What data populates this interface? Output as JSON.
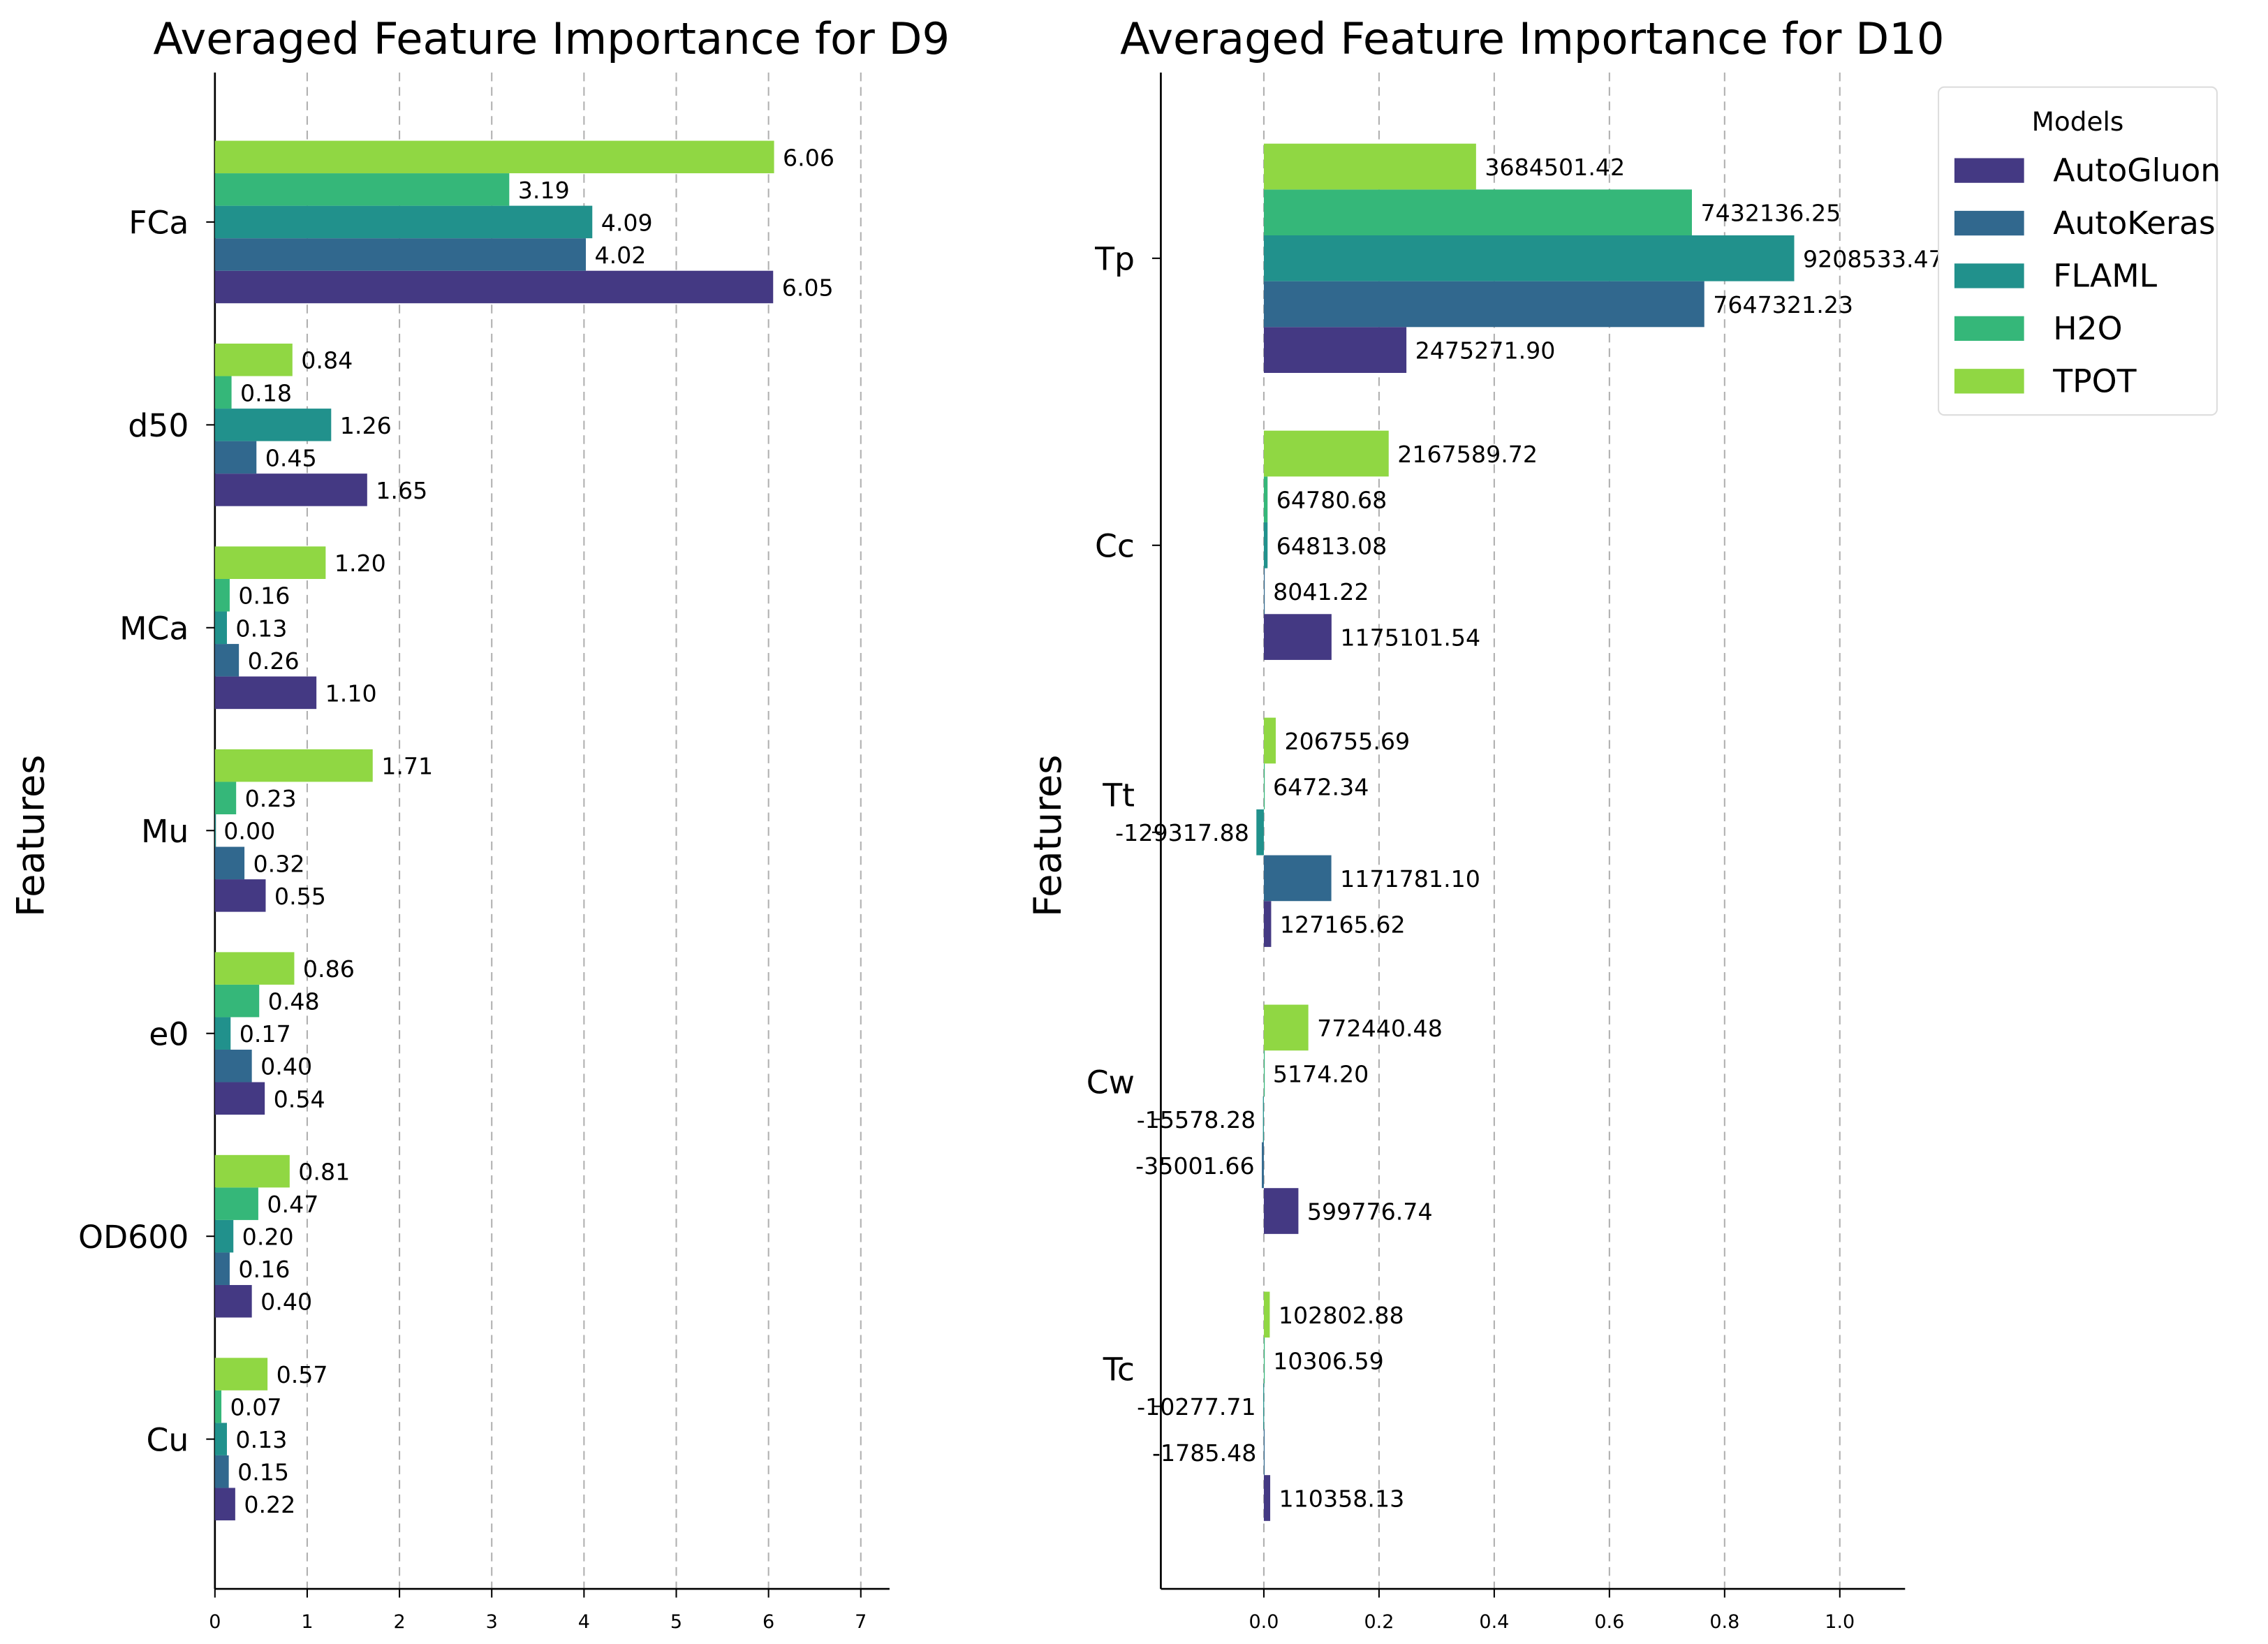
{
  "series_colors": {
    "AutoGluon": "#443983",
    "AutoKeras": "#31688e",
    "FLAML": "#21918c",
    "H2O": "#35b779",
    "TPOT": "#90d743"
  },
  "legend": {
    "title": "Models",
    "entries": [
      "AutoGluon",
      "AutoKeras",
      "FLAML",
      "H2O",
      "TPOT"
    ]
  },
  "chart_data": [
    {
      "type": "bar",
      "orientation": "horizontal",
      "title": "Averaged Feature Importance for D9",
      "xlabel": "",
      "ylabel": "Features",
      "xlim": [
        0,
        7.3
      ],
      "xticks": [
        "0",
        "1",
        "2",
        "3",
        "4",
        "5",
        "6",
        "7"
      ],
      "xtick_values": [
        0,
        1,
        2,
        3,
        4,
        5,
        6,
        7
      ],
      "grid": "x dashed",
      "categories": [
        "FCa",
        "d50",
        "MCa",
        "Mu",
        "e0",
        "OD600",
        "Cu"
      ],
      "series": [
        {
          "name": "AutoGluon",
          "values": [
            6.05,
            1.65,
            1.1,
            0.55,
            0.54,
            0.4,
            0.22
          ],
          "labels": [
            "6.05",
            "1.65",
            "1.10",
            "0.55",
            "0.54",
            "0.40",
            "0.22"
          ]
        },
        {
          "name": "AutoKeras",
          "values": [
            4.02,
            0.45,
            0.26,
            0.32,
            0.4,
            0.16,
            0.15
          ],
          "labels": [
            "4.02",
            "0.45",
            "0.26",
            "0.32",
            "0.40",
            "0.16",
            "0.15"
          ]
        },
        {
          "name": "FLAML",
          "values": [
            4.09,
            1.26,
            0.13,
            0.0,
            0.17,
            0.2,
            0.13
          ],
          "labels": [
            "4.09",
            "1.26",
            "0.13",
            "0.00",
            "0.17",
            "0.20",
            "0.13"
          ]
        },
        {
          "name": "H2O",
          "values": [
            3.19,
            0.18,
            0.16,
            0.23,
            0.48,
            0.47,
            0.07
          ],
          "labels": [
            "3.19",
            "0.18",
            "0.16",
            "0.23",
            "0.48",
            "0.47",
            "0.07"
          ]
        },
        {
          "name": "TPOT",
          "values": [
            6.06,
            0.84,
            1.2,
            1.71,
            0.86,
            0.81,
            0.57
          ],
          "labels": [
            "6.06",
            "0.84",
            "1.20",
            "1.71",
            "0.86",
            "0.81",
            "0.57"
          ]
        }
      ]
    },
    {
      "type": "bar",
      "orientation": "horizontal",
      "title": "Averaged Feature Importance for D10",
      "xlabel": "",
      "ylabel": "Features",
      "x_scale": 10000000,
      "xlim": [
        -0.18,
        1.11
      ],
      "xticks": [
        "0.0",
        "0.2",
        "0.4",
        "0.6",
        "0.8",
        "1.0"
      ],
      "xtick_values": [
        0,
        0.2,
        0.4,
        0.6,
        0.8,
        1.0
      ],
      "grid": "x dashed",
      "legend_position": "top-right",
      "categories": [
        "Tp",
        "Cc",
        "Tt",
        "Cw",
        "Tc"
      ],
      "series": [
        {
          "name": "AutoGluon",
          "values": [
            2475271.9,
            1175101.54,
            127165.62,
            599776.74,
            110358.13
          ],
          "labels": [
            "2475271.90",
            "1175101.54",
            "127165.62",
            "599776.74",
            "110358.13"
          ]
        },
        {
          "name": "AutoKeras",
          "values": [
            7647321.23,
            8041.22,
            1171781.1,
            -35001.66,
            -1785.48
          ],
          "labels": [
            "7647321.23",
            "8041.22",
            "1171781.10",
            "-35001.66",
            "-1785.48"
          ]
        },
        {
          "name": "FLAML",
          "values": [
            9208533.47,
            64813.08,
            -129317.88,
            -15578.28,
            -10277.71
          ],
          "labels": [
            "9208533.47",
            "64813.08",
            "-129317.88",
            "-15578.28",
            "-10277.71"
          ]
        },
        {
          "name": "H2O",
          "values": [
            7432136.25,
            64780.68,
            6472.34,
            5174.2,
            10306.59
          ],
          "labels": [
            "7432136.25",
            "64780.68",
            "6472.34",
            "5174.20",
            "10306.59"
          ]
        },
        {
          "name": "TPOT",
          "values": [
            3684501.42,
            2167589.72,
            206755.69,
            772440.48,
            102802.88
          ],
          "labels": [
            "3684501.42",
            "2167589.72",
            "206755.69",
            "772440.48",
            "102802.88"
          ]
        }
      ]
    }
  ]
}
